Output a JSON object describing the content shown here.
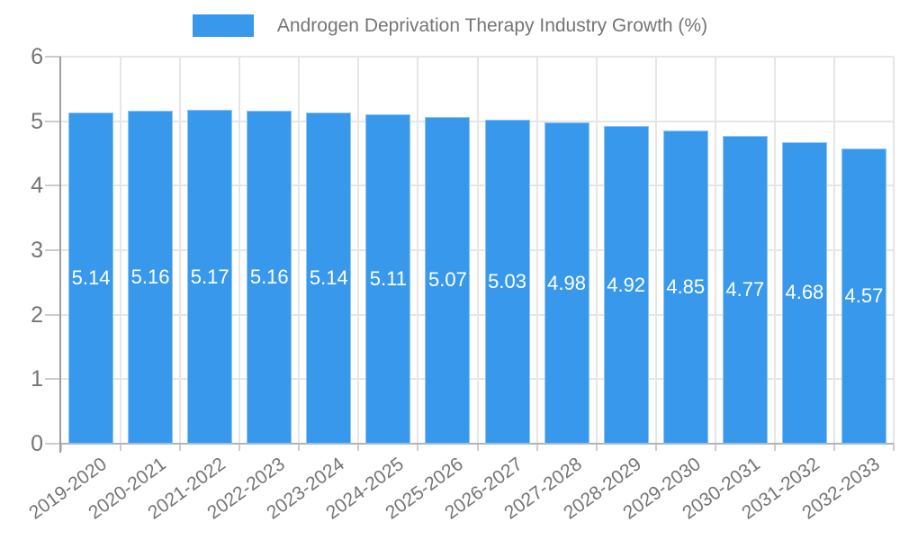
{
  "legend": {
    "label": "Androgen Deprivation Therapy Industry Growth (%)"
  },
  "colors": {
    "bar": "#3899ec",
    "bar_border": "#8ec4f4",
    "grid": "#e6e6e6",
    "y_axis_line": "#9e9e9e",
    "x_axis_line": "#b3b3b3",
    "tick": "#cccccc",
    "tick_label": "#757575",
    "title": "#757575",
    "value_label": "#ffffff",
    "background": "#ffffff"
  },
  "chart_data": {
    "type": "bar",
    "title": "Androgen Deprivation Therapy Industry Growth (%)",
    "xlabel": "",
    "ylabel": "",
    "categories": [
      "2019-2020",
      "2020-2021",
      "2021-2022",
      "2022-2023",
      "2023-2024",
      "2024-2025",
      "2025-2026",
      "2026-2027",
      "2027-2028",
      "2028-2029",
      "2029-2030",
      "2030-2031",
      "2031-2032",
      "2032-2033"
    ],
    "values": [
      5.14,
      5.16,
      5.17,
      5.16,
      5.14,
      5.11,
      5.07,
      5.03,
      4.98,
      4.92,
      4.85,
      4.77,
      4.68,
      4.57
    ],
    "value_labels": [
      "5.14",
      "5.16",
      "5.17",
      "5.16",
      "5.14",
      "5.11",
      "5.07",
      "5.03",
      "4.98",
      "4.92",
      "4.85",
      "4.77",
      "4.68",
      "4.57"
    ],
    "ylim": [
      0,
      6
    ],
    "yticks": [
      0,
      1,
      2,
      3,
      4,
      5,
      6
    ],
    "grid": true,
    "legend_position": "top",
    "value_labels_inside_bars": true
  }
}
